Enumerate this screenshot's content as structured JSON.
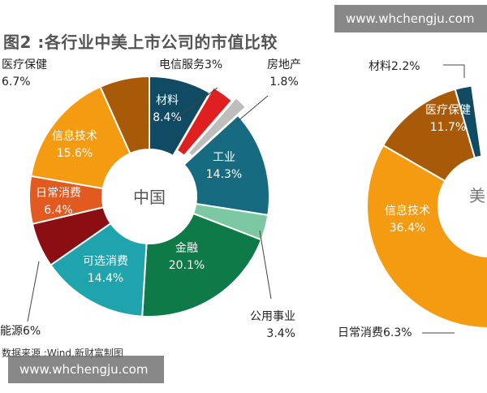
{
  "title": "图2 :各行业中美上市公司的市值比较",
  "source": "数据来源 :Wind,新财富制图",
  "watermark_top": "www.whchengju.com",
  "watermark_bottom": "www.whchengju.com",
  "chart_data": [
    {
      "type": "pie",
      "center_label": "中国",
      "slices": [
        {
          "name": "材料",
          "value": 8.4,
          "color": "#114a63"
        },
        {
          "name": "电信服务",
          "value": 3.0,
          "color": "#e02020"
        },
        {
          "name": "房地产",
          "value": 1.8,
          "color": "#bdbdbd"
        },
        {
          "name": "工业",
          "value": 14.3,
          "color": "#166b80"
        },
        {
          "name": "公用事业",
          "value": 3.4,
          "color": "#7cc8a2"
        },
        {
          "name": "金融",
          "value": 20.1,
          "color": "#0e7a47"
        },
        {
          "name": "可选消费",
          "value": 14.4,
          "color": "#1fa3ad"
        },
        {
          "name": "能源",
          "value": 6.0,
          "color": "#8a0e12"
        },
        {
          "name": "日常消费",
          "value": 6.4,
          "color": "#e35a20"
        },
        {
          "name": "信息技术",
          "value": 15.6,
          "color": "#f49b12"
        },
        {
          "name": "医疗保健",
          "value": 6.7,
          "color": "#a85a08"
        }
      ],
      "labels": {
        "材料": "材料|8.4%",
        "电信服务": "电信服务3%",
        "房地产": "房地产|1.8%",
        "工业": "工业|14.3%",
        "公用事业": "公用事业|3.4%",
        "金融": "金融|20.1%",
        "可选消费": "可选消费|14.4%",
        "能源": "能源6%",
        "日常消费": "日常消费|6.4%",
        "信息技术": "信息技术|15.6%",
        "医疗保健": "医疗保健|6.7%"
      }
    },
    {
      "type": "pie",
      "center_label": "美",
      "slices": [
        {
          "name": "材料",
          "value": 2.2,
          "color": "#114a63"
        },
        {
          "name": "医疗保健",
          "value": 11.7,
          "color": "#a85a08"
        },
        {
          "name": "信息技术",
          "value": 36.4,
          "color": "#f49b12"
        },
        {
          "name": "日常消费",
          "value": 6.3,
          "color": "#e35a20"
        }
      ],
      "labels": {
        "材料": "材料2.2%",
        "医疗保健": "医疗保健|11.7%",
        "信息技术": "信息技术|36.4%",
        "日常消费": "日常消费6.3%"
      }
    }
  ]
}
